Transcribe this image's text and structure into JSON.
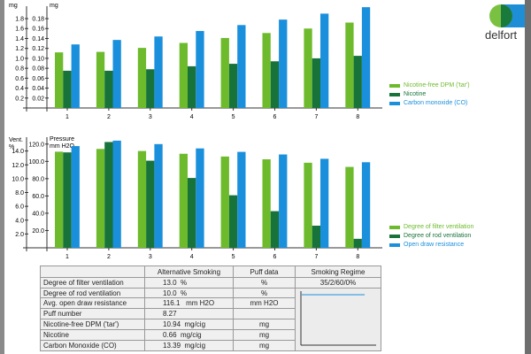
{
  "logo": {
    "text": "delfort"
  },
  "colors": {
    "tar": "#6dbb2c",
    "nicotine": "#17733a",
    "co": "#1a8fdc"
  },
  "chart_data": [
    {
      "type": "bar",
      "title": "",
      "categories": [
        "1",
        "2",
        "3",
        "4",
        "5",
        "6",
        "7",
        "8"
      ],
      "left_axis": {
        "label": "mg",
        "ylim": [
          0,
          2.05
        ],
        "ticks": [
          "0.2",
          "0.4",
          "0.6",
          "0.8",
          "1.0",
          "1.2",
          "1.4",
          "1.6",
          "1.8"
        ]
      },
      "right_axis": {
        "label": "mg",
        "ylim": [
          0,
          0.205
        ],
        "ticks": [
          "0.02",
          "0.04",
          "0.06",
          "0.08",
          "0.10",
          "0.12",
          "0.14",
          "0.16",
          "0.18"
        ]
      },
      "series": [
        {
          "name": "Nicotine-free DPM ('tar')",
          "axis": "left",
          "values": [
            1.12,
            1.13,
            1.21,
            1.31,
            1.41,
            1.51,
            1.6,
            1.72
          ]
        },
        {
          "name": "Nicotine",
          "axis": "right",
          "values": [
            0.075,
            0.075,
            0.078,
            0.084,
            0.089,
            0.094,
            0.1,
            0.105
          ]
        },
        {
          "name": "Carbon monoxide (CO)",
          "axis": "left",
          "values": [
            1.28,
            1.37,
            1.44,
            1.55,
            1.67,
            1.78,
            1.9,
            2.03
          ]
        }
      ],
      "legend": "right"
    },
    {
      "type": "bar",
      "categories": [
        "1",
        "2",
        "3",
        "4",
        "5",
        "6",
        "7",
        "8"
      ],
      "left_axis": {
        "label": "Vent. %",
        "ylim": [
          0,
          16
        ],
        "ticks": [
          "2.0",
          "4.0",
          "6.0",
          "8.0",
          "10.0",
          "12.0",
          "14.0"
        ]
      },
      "right_axis": {
        "label": "Pressure mm H2O",
        "ylim": [
          0,
          128
        ],
        "ticks": [
          "20.0",
          "40.0",
          "60.0",
          "80.0",
          "100.0",
          "120.0"
        ]
      },
      "series": [
        {
          "name": "Degree of filter ventilation",
          "axis": "left",
          "values": [
            13.9,
            14.3,
            14.0,
            13.6,
            13.2,
            12.8,
            12.3,
            11.7
          ]
        },
        {
          "name": "Degree of rod ventilation",
          "axis": "left",
          "values": [
            13.8,
            15.3,
            12.6,
            10.1,
            7.6,
            5.3,
            3.2,
            1.3
          ]
        },
        {
          "name": "Open draw resistance",
          "axis": "right",
          "values": [
            117.7,
            124,
            120,
            115,
            111,
            108,
            103,
            99
          ]
        }
      ],
      "legend": "right"
    }
  ],
  "table": {
    "headers": [
      "",
      "Alternative Smoking",
      "Puff data",
      "Smoking Regime"
    ],
    "regime": "35/2/60/0%",
    "rows": [
      {
        "label": "Degree of filter ventilation",
        "alt": "13.0  %",
        "puff": "%"
      },
      {
        "label": "Degree of rod ventilation",
        "alt": "10.0  %",
        "puff": "%"
      },
      {
        "label": "Avg. open draw resistance",
        "alt": "116.1   mm H2O",
        "puff": "mm H2O"
      },
      {
        "label": "Puff number",
        "alt": "8.27",
        "puff": ""
      },
      {
        "label": "Nicotine-free DPM ('tar')",
        "alt": "10.94  mg/cig",
        "puff": "mg"
      },
      {
        "label": "Nicotine",
        "alt": "0.66  mg/cig",
        "puff": "mg"
      },
      {
        "label": "Carbon Monoxide (CO)",
        "alt": "13.39  mg/cig",
        "puff": "mg"
      }
    ]
  }
}
